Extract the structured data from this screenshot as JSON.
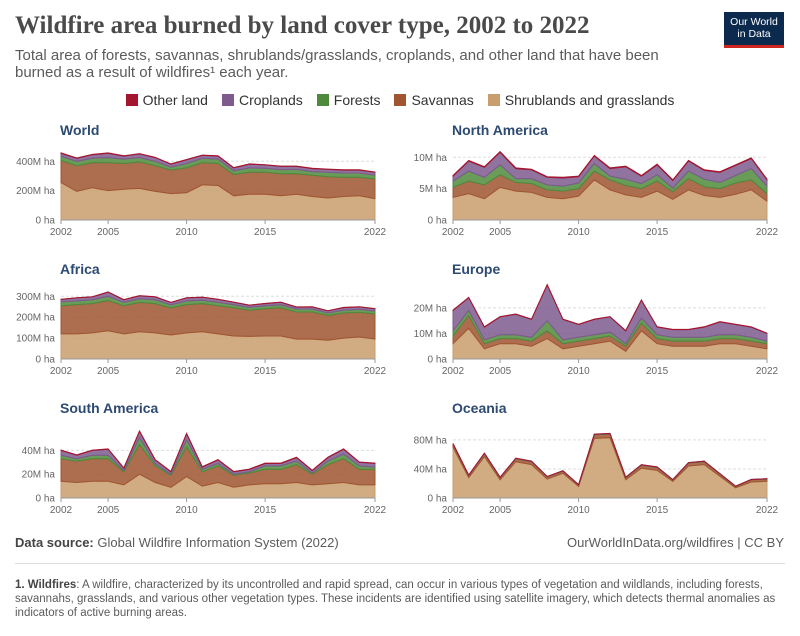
{
  "title": "Wildfire area burned by land cover type, 2002 to 2022",
  "subtitle": "Total area of forests, savannas, shrublands/grasslands, croplands, and other land that have been burned as a result of wildfires¹ each year.",
  "logo": {
    "line1": "Our World",
    "line2": "in Data",
    "bg": "#0c2a4d",
    "accent": "#ce261e"
  },
  "legend": [
    {
      "label": "Other land",
      "color": "#a3162f"
    },
    {
      "label": "Croplands",
      "color": "#7e5a8f"
    },
    {
      "label": "Forests",
      "color": "#4f8a3c"
    },
    {
      "label": "Savannas",
      "color": "#9f5531"
    },
    {
      "label": "Shrublands and grasslands",
      "color": "#c99d6d"
    }
  ],
  "footer": {
    "source_label": "Data source:",
    "source_text": "Global Wildfire Information System (2022)",
    "link": "OurWorldInData.org/wildfires | CC BY"
  },
  "footnote": {
    "label": "1. Wildfires",
    "text": ": A wildfire, characterized by its uncontrolled and rapid spread, can occur in various types of vegetation and wildlands, including forests, savannahs, grasslands, and various other vegetation types. These incidents are identified using satellite imagery, which detects thermal anomalies as indicators of active burning areas."
  },
  "chart_data": [
    {
      "type": "area",
      "title": "World",
      "x": [
        2002,
        2003,
        2004,
        2005,
        2006,
        2007,
        2008,
        2009,
        2010,
        2011,
        2012,
        2013,
        2014,
        2015,
        2016,
        2017,
        2018,
        2019,
        2020,
        2021,
        2022
      ],
      "x_ticks": [
        2002,
        2005,
        2010,
        2015,
        2022
      ],
      "y_ticks": [
        0,
        200,
        400
      ],
      "y_tick_labels": [
        "0 ha",
        "200M ha",
        "400M ha"
      ],
      "ylim": [
        0,
        470
      ],
      "series": [
        {
          "name": "Shrublands and grasslands",
          "values": [
            255,
            195,
            220,
            200,
            210,
            215,
            195,
            180,
            185,
            240,
            235,
            165,
            175,
            175,
            165,
            175,
            160,
            150,
            160,
            165,
            145
          ]
        },
        {
          "name": "Savannas",
          "values": [
            150,
            175,
            170,
            190,
            175,
            180,
            175,
            160,
            170,
            150,
            150,
            145,
            150,
            150,
            150,
            140,
            145,
            145,
            130,
            125,
            135
          ]
        },
        {
          "name": "Forests",
          "values": [
            30,
            30,
            30,
            35,
            30,
            30,
            30,
            20,
            30,
            30,
            30,
            25,
            30,
            28,
            28,
            30,
            25,
            30,
            30,
            30,
            25
          ]
        },
        {
          "name": "Croplands",
          "values": [
            20,
            20,
            25,
            30,
            20,
            25,
            25,
            20,
            25,
            20,
            20,
            20,
            25,
            22,
            22,
            20,
            20,
            20,
            20,
            20,
            20
          ]
        },
        {
          "name": "Other land",
          "values": [
            2,
            2,
            2,
            2,
            2,
            2,
            2,
            2,
            2,
            2,
            2,
            2,
            2,
            2,
            2,
            2,
            2,
            2,
            2,
            2,
            2
          ]
        }
      ]
    },
    {
      "type": "area",
      "title": "North America",
      "x": [
        2002,
        2003,
        2004,
        2005,
        2006,
        2007,
        2008,
        2009,
        2010,
        2011,
        2012,
        2013,
        2014,
        2015,
        2016,
        2017,
        2018,
        2019,
        2020,
        2021,
        2022
      ],
      "x_ticks": [
        2002,
        2005,
        2010,
        2015,
        2022
      ],
      "y_ticks": [
        0,
        5,
        10
      ],
      "y_tick_labels": [
        "0 ha",
        "5M ha",
        "10M ha"
      ],
      "ylim": [
        0,
        11
      ],
      "series": [
        {
          "name": "Shrublands and grasslands",
          "values": [
            3.6,
            4.2,
            3.4,
            5.2,
            4.6,
            4.4,
            3.6,
            3.4,
            3.8,
            6.4,
            4.8,
            4.0,
            3.6,
            4.6,
            3.3,
            4.8,
            3.9,
            3.6,
            4.1,
            4.8,
            3.0
          ]
        },
        {
          "name": "Savannas",
          "values": [
            1.6,
            2.0,
            2.2,
            2.0,
            1.4,
            1.4,
            1.2,
            1.2,
            1.2,
            1.4,
            1.6,
            1.5,
            1.4,
            1.6,
            1.2,
            1.8,
            1.4,
            1.4,
            1.8,
            1.6,
            1.2
          ]
        },
        {
          "name": "Forests",
          "values": [
            1.0,
            1.6,
            1.2,
            1.6,
            0.6,
            0.8,
            0.8,
            0.8,
            0.9,
            1.2,
            0.6,
            1.0,
            0.8,
            1.0,
            0.6,
            1.2,
            1.2,
            1.0,
            1.2,
            1.8,
            1.2
          ]
        },
        {
          "name": "Croplands",
          "values": [
            0.8,
            1.6,
            1.6,
            2.0,
            1.6,
            1.4,
            1.2,
            1.3,
            1.0,
            1.2,
            1.2,
            2.0,
            1.2,
            1.6,
            1.2,
            1.6,
            1.4,
            1.6,
            1.6,
            1.6,
            1.0
          ]
        },
        {
          "name": "Other land",
          "values": [
            0.1,
            0.1,
            0.1,
            0.1,
            0.1,
            0.1,
            0.1,
            0.1,
            0.1,
            0.1,
            0.1,
            0.1,
            0.1,
            0.1,
            0.1,
            0.1,
            0.1,
            0.1,
            0.1,
            0.1,
            0.1
          ]
        }
      ]
    },
    {
      "type": "area",
      "title": "Africa",
      "x": [
        2002,
        2003,
        2004,
        2005,
        2006,
        2007,
        2008,
        2009,
        2010,
        2011,
        2012,
        2013,
        2014,
        2015,
        2016,
        2017,
        2018,
        2019,
        2020,
        2021,
        2022
      ],
      "x_ticks": [
        2002,
        2005,
        2010,
        2015,
        2022
      ],
      "y_ticks": [
        0,
        100,
        200,
        300
      ],
      "y_tick_labels": [
        "0 ha",
        "100M ha",
        "200M ha",
        "300M ha"
      ],
      "ylim": [
        0,
        330
      ],
      "series": [
        {
          "name": "Shrublands and grasslands",
          "values": [
            120,
            120,
            125,
            135,
            120,
            130,
            125,
            115,
            125,
            130,
            120,
            110,
            108,
            110,
            110,
            95,
            95,
            90,
            100,
            105,
            95
          ]
        },
        {
          "name": "Savannas",
          "values": [
            135,
            140,
            140,
            145,
            135,
            140,
            140,
            130,
            135,
            135,
            135,
            135,
            125,
            130,
            135,
            130,
            130,
            118,
            120,
            118,
            120
          ]
        },
        {
          "name": "Forests",
          "values": [
            18,
            18,
            18,
            20,
            16,
            18,
            18,
            14,
            18,
            16,
            16,
            14,
            14,
            14,
            14,
            14,
            14,
            12,
            14,
            14,
            14
          ]
        },
        {
          "name": "Croplands",
          "values": [
            12,
            14,
            14,
            20,
            12,
            14,
            14,
            11,
            14,
            14,
            14,
            12,
            10,
            11,
            12,
            9,
            10,
            10,
            12,
            12,
            11
          ]
        },
        {
          "name": "Other land",
          "values": [
            1,
            1,
            1,
            1,
            1,
            1,
            1,
            1,
            1,
            1,
            1,
            1,
            1,
            1,
            1,
            1,
            1,
            1,
            1,
            1,
            1
          ]
        }
      ]
    },
    {
      "type": "area",
      "title": "Europe",
      "x": [
        2002,
        2003,
        2004,
        2005,
        2006,
        2007,
        2008,
        2009,
        2010,
        2011,
        2012,
        2013,
        2014,
        2015,
        2016,
        2017,
        2018,
        2019,
        2020,
        2021,
        2022
      ],
      "x_ticks": [
        2002,
        2005,
        2010,
        2015,
        2022
      ],
      "y_ticks": [
        0,
        10,
        20
      ],
      "y_tick_labels": [
        "0 ha",
        "10M ha",
        "20M ha"
      ],
      "ylim": [
        0,
        27
      ],
      "series": [
        {
          "name": "Shrublands and grasslands",
          "values": [
            6,
            12,
            4,
            6,
            6,
            5,
            8,
            4,
            5,
            6,
            7,
            3,
            11,
            6,
            5,
            5,
            5,
            6,
            6,
            5,
            4
          ]
        },
        {
          "name": "Savannas",
          "values": [
            3,
            5,
            2,
            2,
            2,
            2,
            3,
            2,
            2,
            2,
            2,
            2,
            3,
            2,
            2,
            2,
            2,
            2,
            2,
            2,
            2
          ]
        },
        {
          "name": "Forests",
          "values": [
            2,
            2,
            1.5,
            1.5,
            1.5,
            1.5,
            4,
            1.5,
            1.5,
            1.5,
            1.5,
            1,
            2,
            1.5,
            1.5,
            1.5,
            1.5,
            1.5,
            1.5,
            1.5,
            1
          ]
        },
        {
          "name": "Croplands",
          "values": [
            8,
            5,
            5,
            7,
            8,
            7,
            14,
            8,
            5,
            6,
            6,
            5,
            7,
            3,
            3,
            3,
            4,
            5,
            4,
            4,
            3
          ]
        },
        {
          "name": "Other land",
          "values": [
            0.1,
            0.1,
            0.1,
            0.1,
            0.1,
            0.1,
            0.1,
            0.1,
            0.1,
            0.1,
            0.1,
            0.1,
            0.1,
            0.1,
            0.1,
            0.1,
            0.1,
            0.1,
            0.1,
            0.1,
            0.1
          ]
        }
      ]
    },
    {
      "type": "area",
      "title": "South America",
      "x": [
        2002,
        2003,
        2004,
        2005,
        2006,
        2007,
        2008,
        2009,
        2010,
        2011,
        2012,
        2013,
        2014,
        2015,
        2016,
        2017,
        2018,
        2019,
        2020,
        2021,
        2022
      ],
      "x_ticks": [
        2002,
        2005,
        2010,
        2015,
        2022
      ],
      "y_ticks": [
        0,
        20,
        40
      ],
      "y_tick_labels": [
        "0 ha",
        "20M ha",
        "40M ha"
      ],
      "ylim": [
        0,
        58
      ],
      "series": [
        {
          "name": "Shrublands and grasslands",
          "values": [
            14,
            13,
            14,
            14,
            11,
            20,
            13,
            9,
            18,
            10,
            13,
            9,
            11,
            12,
            12,
            13,
            11,
            12,
            13,
            11,
            11
          ]
        },
        {
          "name": "Savannas",
          "values": [
            19,
            18,
            19,
            19,
            11,
            25,
            14,
            10,
            25,
            12,
            14,
            10,
            10,
            12,
            12,
            15,
            9,
            16,
            20,
            13,
            13
          ]
        },
        {
          "name": "Forests",
          "values": [
            3,
            2,
            3,
            3,
            1,
            6,
            2,
            1,
            6,
            2,
            2,
            1,
            1,
            3,
            3,
            3,
            1,
            3,
            4,
            3,
            2
          ]
        },
        {
          "name": "Croplands",
          "values": [
            4,
            3,
            4,
            5,
            2,
            5,
            3,
            2,
            5,
            2,
            3,
            2,
            2,
            2,
            2,
            3,
            2,
            3,
            4,
            3,
            3
          ]
        },
        {
          "name": "Other land",
          "values": [
            0.3,
            0.3,
            0.3,
            0.3,
            0.3,
            0.3,
            0.3,
            0.3,
            0.3,
            0.3,
            0.3,
            0.3,
            0.3,
            0.3,
            0.3,
            0.3,
            0.3,
            0.3,
            0.3,
            0.3,
            0.3
          ]
        }
      ]
    },
    {
      "type": "area",
      "title": "Oceania",
      "x": [
        2002,
        2003,
        2004,
        2005,
        2006,
        2007,
        2008,
        2009,
        2010,
        2011,
        2012,
        2013,
        2014,
        2015,
        2016,
        2017,
        2018,
        2019,
        2020,
        2021,
        2022
      ],
      "x_ticks": [
        2002,
        2005,
        2010,
        2015,
        2022
      ],
      "y_ticks": [
        0,
        40,
        80
      ],
      "y_tick_labels": [
        "0 ha",
        "40M ha",
        "80M ha"
      ],
      "ylim": [
        0,
        95
      ],
      "series": [
        {
          "name": "Shrublands and grasslands",
          "values": [
            70,
            28,
            57,
            25,
            50,
            46,
            26,
            34,
            16,
            82,
            83,
            25,
            41,
            38,
            23,
            44,
            46,
            30,
            14,
            22,
            23
          ]
        },
        {
          "name": "Savannas",
          "values": [
            4,
            3,
            4,
            3,
            4,
            4,
            3,
            3,
            2,
            5,
            5,
            3,
            4,
            4,
            2,
            4,
            4,
            3,
            2,
            3,
            3
          ]
        },
        {
          "name": "Forests",
          "values": [
            0.5,
            0.3,
            0.4,
            0.3,
            0.4,
            0.4,
            0.3,
            0.3,
            0.2,
            0.5,
            0.5,
            0.3,
            0.4,
            0.4,
            0.2,
            0.4,
            0.4,
            0.3,
            0.2,
            0.3,
            0.3
          ]
        },
        {
          "name": "Croplands",
          "values": [
            0.3,
            0.2,
            0.3,
            0.2,
            0.3,
            0.3,
            0.2,
            0.2,
            0.1,
            0.3,
            0.3,
            0.2,
            0.3,
            0.3,
            0.1,
            0.3,
            0.3,
            0.2,
            0.1,
            0.2,
            0.2
          ]
        },
        {
          "name": "Other land",
          "values": [
            0.2,
            0.1,
            0.1,
            0.1,
            0.1,
            0.1,
            0.1,
            0.1,
            0.1,
            0.2,
            0.2,
            0.1,
            0.1,
            0.1,
            0.1,
            0.1,
            0.1,
            0.1,
            0.1,
            0.1,
            0.1
          ]
        }
      ]
    }
  ]
}
